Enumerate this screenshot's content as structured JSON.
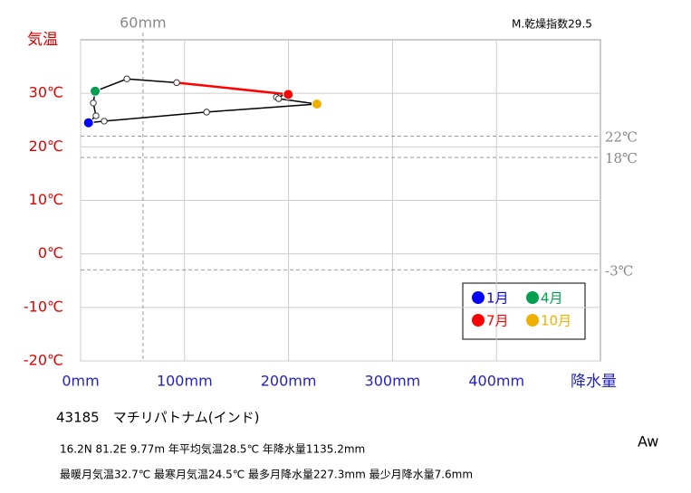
{
  "chart_data": {
    "type": "line",
    "index_label": "M.乾燥指数29.5",
    "xlabel": "降水量",
    "ylabel": "気温",
    "xlim": [
      0,
      500
    ],
    "ylim": [
      -20,
      40
    ],
    "xticks": [
      {
        "value": 0,
        "label": "0mm"
      },
      {
        "value": 100,
        "label": "100mm"
      },
      {
        "value": 200,
        "label": "200mm"
      },
      {
        "value": 300,
        "label": "300mm"
      },
      {
        "value": 400,
        "label": "400mm"
      }
    ],
    "yticks": [
      {
        "value": -20,
        "label": "-20℃"
      },
      {
        "value": -10,
        "label": "-10℃"
      },
      {
        "value": 0,
        "label": "0℃"
      },
      {
        "value": 10,
        "label": "10℃"
      },
      {
        "value": 20,
        "label": "20℃"
      },
      {
        "value": 30,
        "label": "30℃"
      }
    ],
    "grid": true,
    "reference_y": [
      {
        "value": 22,
        "label": "22℃"
      },
      {
        "value": 18,
        "label": "18℃"
      },
      {
        "value": -3,
        "label": "-3℃"
      }
    ],
    "reference_x": [
      {
        "value": 60,
        "label": "60mm"
      }
    ],
    "series": [
      {
        "color": "#000000",
        "x": [
          7.6,
          14.8,
          12.2,
          14.0,
          44.5,
          92.4,
          199.7,
          188.3,
          190.5,
          227.3,
          121.2,
          22.7
        ],
        "values": [
          24.5,
          25.8,
          28.2,
          30.4,
          32.7,
          32.0,
          29.8,
          29.3,
          29.0,
          28.0,
          26.5,
          24.8
        ]
      }
    ],
    "legend": [
      {
        "name": "1月",
        "color": "#0000ff"
      },
      {
        "name": "4月",
        "color": "#00a050"
      },
      {
        "name": "7月",
        "color": "#ff0000"
      },
      {
        "name": "10月",
        "color": "#f0b000"
      }
    ],
    "line_segment_to": "7月",
    "station": "43185　マチリパトナム(インド)",
    "info1": "16.2N  81.2E  9.77m  年平均気温28.5℃ 年降水量1135.2mm",
    "info2": "最暖月気温32.7℃ 最寒月気温24.5℃ 最多月降水量227.3mm 最少月降水量7.6mm",
    "climate": "Aw"
  }
}
